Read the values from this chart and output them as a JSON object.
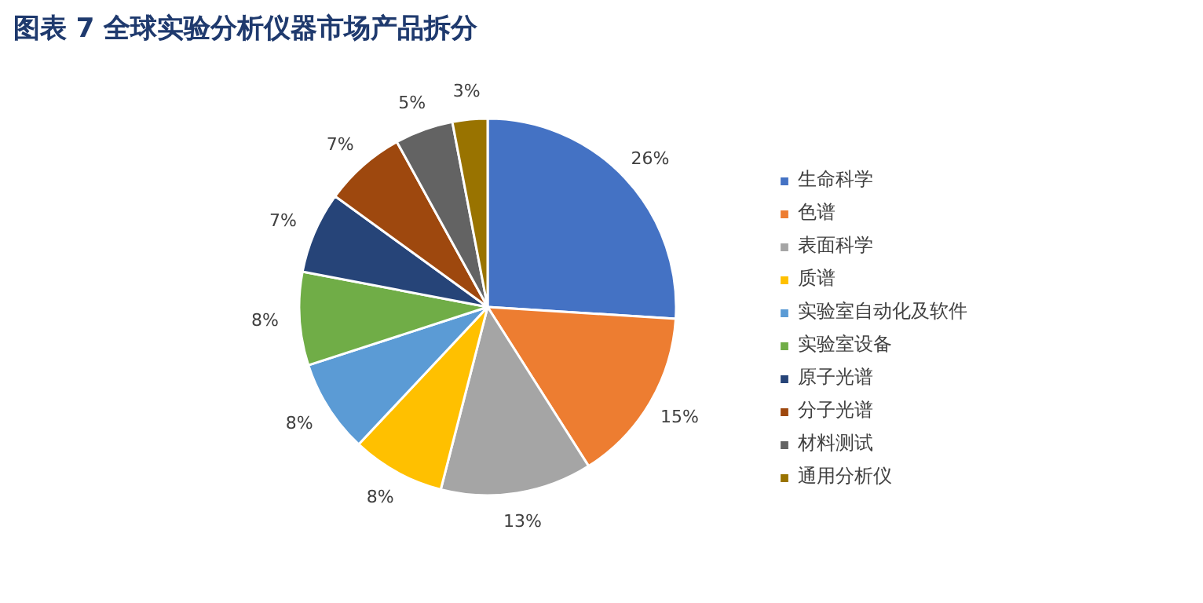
{
  "chart_data": {
    "type": "pie",
    "title": "图表 7   全球实验分析仪器市场产品拆分",
    "categories": [
      "生命科学",
      "色谱",
      "表面科学",
      "质谱",
      "实验室自动化及软件",
      "实验室设备",
      "原子光谱",
      "分子光谱",
      "材料测试",
      "通用分析仪"
    ],
    "values": [
      26,
      15,
      13,
      8,
      8,
      8,
      7,
      7,
      5,
      3
    ],
    "colors": [
      "#4472c4",
      "#ed7d31",
      "#a5a5a5",
      "#ffc000",
      "#5b9bd5",
      "#70ad47",
      "#264478",
      "#9e480e",
      "#636363",
      "#997300"
    ],
    "value_labels": [
      "26%",
      "15%",
      "13%",
      "8%",
      "8%",
      "8%",
      "7%",
      "7%",
      "5%",
      "3%"
    ],
    "legend": "right"
  }
}
